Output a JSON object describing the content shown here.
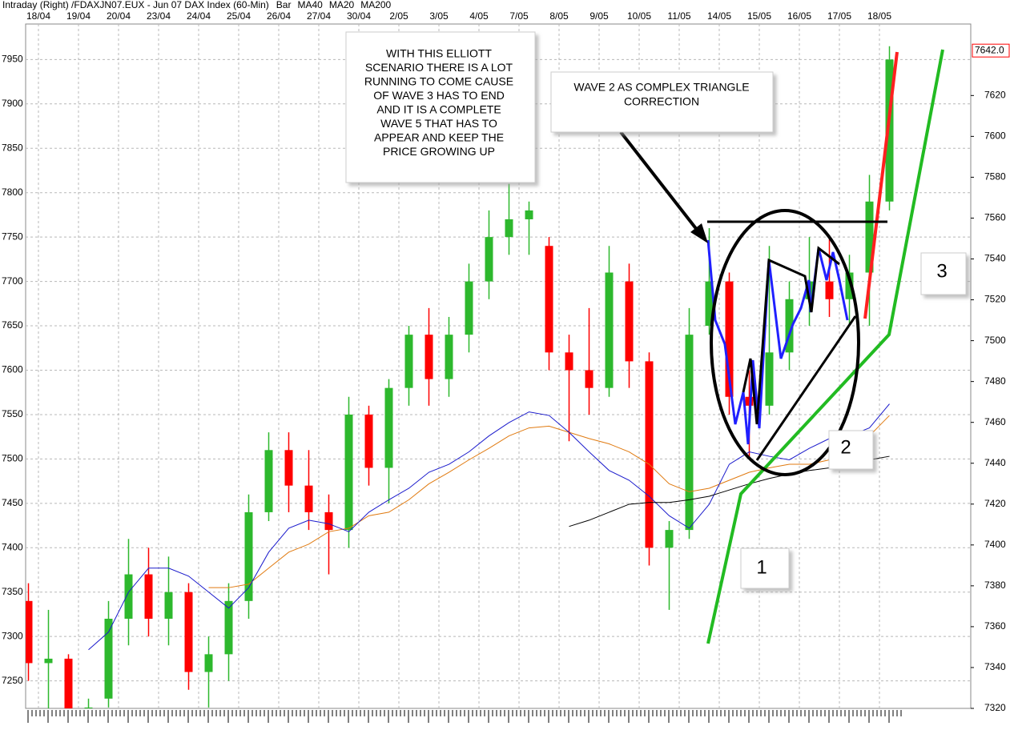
{
  "chart_data": {
    "type": "candlestick",
    "title": "Intraday   (Right)   /FDAXJN07.EUX - Jun 07  DAX Index (60-Min)",
    "categories": [
      "18/04",
      null,
      "19/04",
      null,
      "20/04",
      null,
      "23/04",
      null,
      "24/04",
      null,
      "25/04",
      null,
      "26/04",
      null,
      "27/04",
      null,
      "30/04",
      null,
      "2/05",
      null,
      "3/05",
      null,
      "4/05",
      null,
      "7/05",
      null,
      "8/05",
      null,
      "9/05",
      null,
      "10/05",
      null,
      "11/05",
      null,
      "14/05",
      null,
      "15/05",
      null,
      "16/05",
      null,
      "17/05",
      null,
      "18/05",
      null
    ],
    "bars": {
      "name": "Bar",
      "color": "#ff0000",
      "up_color": "#2db82d",
      "down_color": "#ff0000",
      "open": [
        7340,
        7270,
        7275,
        7210,
        7230,
        7320,
        7370,
        7320,
        7350,
        7260,
        7280,
        7340,
        7440,
        7510,
        7470,
        7440,
        7420,
        7550,
        7490,
        7580,
        7640,
        7590,
        7640,
        7700,
        7750,
        7770,
        7740,
        7620,
        7600,
        7580,
        7700,
        7610,
        7400,
        7420,
        7650,
        7700,
        7570,
        7560,
        7620,
        7680,
        7700,
        7680,
        7710,
        7790
      ],
      "high": [
        7360,
        7330,
        7280,
        7230,
        7340,
        7410,
        7400,
        7390,
        7360,
        7300,
        7360,
        7460,
        7530,
        7530,
        7510,
        7460,
        7570,
        7560,
        7590,
        7650,
        7670,
        7660,
        7720,
        7780,
        7810,
        7790,
        7750,
        7640,
        7670,
        7740,
        7720,
        7620,
        7430,
        7670,
        7760,
        7710,
        7600,
        7740,
        7700,
        7750,
        7750,
        7730,
        7820,
        7965
      ],
      "low": [
        7250,
        7215,
        7200,
        7190,
        7220,
        7290,
        7300,
        7290,
        7240,
        7220,
        7250,
        7320,
        7430,
        7440,
        7420,
        7370,
        7400,
        7470,
        7450,
        7560,
        7560,
        7570,
        7620,
        7680,
        7730,
        7730,
        7600,
        7520,
        7550,
        7570,
        7580,
        7380,
        7330,
        7410,
        7640,
        7550,
        7500,
        7550,
        7600,
        7650,
        7660,
        7650,
        7650,
        7780
      ],
      "close": [
        7270,
        7275,
        7210,
        7220,
        7320,
        7370,
        7320,
        7350,
        7260,
        7280,
        7340,
        7440,
        7510,
        7470,
        7440,
        7420,
        7550,
        7490,
        7580,
        7640,
        7590,
        7640,
        7700,
        7750,
        7770,
        7780,
        7620,
        7600,
        7580,
        7710,
        7610,
        7400,
        7420,
        7640,
        7700,
        7570,
        7560,
        7620,
        7680,
        7700,
        7680,
        7710,
        7790,
        7950
      ]
    },
    "series": [
      {
        "name": "MA40",
        "color": "#e07a10",
        "values": [
          null,
          null,
          null,
          null,
          null,
          null,
          null,
          null,
          null,
          7355,
          7355,
          7359,
          7377,
          7395,
          7404,
          7418,
          7422,
          7436,
          7440,
          7454,
          7472,
          7485,
          7499,
          7512,
          7526,
          7535,
          7537,
          7530,
          7523,
          7517,
          7508,
          7494,
          7472,
          7463,
          7467,
          7476,
          7485,
          7490,
          7494,
          7494,
          7499,
          7508,
          7526,
          7549
        ]
      },
      {
        "name": "MA20",
        "color": "#1a1acc",
        "values": [
          null,
          null,
          null,
          7285,
          7305,
          7350,
          7377,
          7377,
          7368,
          7350,
          7332,
          7355,
          7395,
          7422,
          7431,
          7427,
          7418,
          7440,
          7454,
          7467,
          7485,
          7494,
          7508,
          7526,
          7541,
          7553,
          7549,
          7530,
          7508,
          7487,
          7476,
          7458,
          7436,
          7422,
          7449,
          7494,
          7508,
          7503,
          7499,
          7512,
          7523,
          7526,
          7535,
          7562
        ]
      },
      {
        "name": "MA200",
        "color": "#000000",
        "values": [
          null,
          null,
          null,
          null,
          null,
          null,
          null,
          null,
          null,
          null,
          null,
          null,
          null,
          null,
          null,
          null,
          null,
          null,
          null,
          null,
          null,
          null,
          null,
          null,
          null,
          null,
          null,
          7424,
          7431,
          7440,
          7449,
          7451,
          7451,
          7454,
          7458,
          7465,
          7472,
          7478,
          7483,
          7487,
          7490,
          7494,
          7499,
          7503
        ]
      }
    ],
    "ylim": [
      7219,
      7990
    ],
    "yticks": [
      7250,
      7300,
      7350,
      7400,
      7450,
      7500,
      7550,
      7600,
      7650,
      7700,
      7750,
      7800,
      7850,
      7900,
      7950
    ],
    "y2lim": [
      7320,
      7655
    ],
    "y2ticks": [
      7320,
      7340,
      7360,
      7380,
      7400,
      7420,
      7440,
      7460,
      7480,
      7500,
      7520,
      7540,
      7560,
      7580,
      7600,
      7620
    ],
    "last_price": {
      "value": 7642,
      "label": "7642.0",
      "axis": "y2",
      "color": "#ff0000"
    },
    "grid": true,
    "annotations": {
      "scenario": {
        "color": "#ff0000",
        "lines": [
          "WITH THIS ELLIOTT",
          "SCENARIO THERE IS A LOT",
          "RUNNING TO COME CAUSE",
          "OF WAVE 3 HAS TO END",
          "AND IT IS A COMPLETE",
          "WAVE 5 THAT HAS TO",
          "APPEAR AND KEEP THE",
          "PRICE GROWING UP"
        ]
      },
      "wave2": {
        "color": "#000000",
        "lines": [
          "WAVE 2 AS COMPLEX TRIANGLE",
          "CORRECTION"
        ]
      },
      "waves": {
        "color": "#22cc22",
        "labels": [
          "1",
          "2",
          "3"
        ]
      }
    }
  }
}
